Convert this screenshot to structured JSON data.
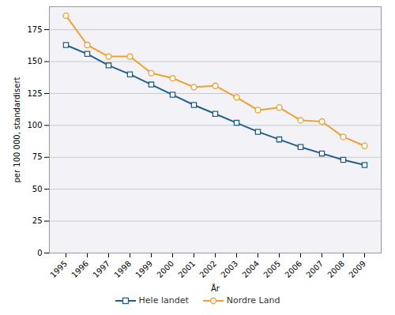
{
  "chart_data": {
    "type": "line",
    "x_label": "År",
    "y_label": "per 100 000, standardisert",
    "categories": [
      "1995",
      "1996",
      "1997",
      "1998",
      "1999",
      "2000",
      "2001",
      "2002",
      "2003",
      "2004",
      "2005",
      "2006",
      "2007",
      "2008",
      "2009"
    ],
    "series": [
      {
        "name": "Hele landet",
        "color": "#1f5f8f",
        "marker": "square",
        "values": [
          163,
          156,
          147,
          140,
          132,
          124,
          116,
          109,
          102,
          95,
          89,
          83,
          78,
          73,
          69
        ]
      },
      {
        "name": "Nordre Land",
        "color": "#f0a030",
        "marker": "circle",
        "values": [
          186,
          163,
          154,
          154,
          141,
          137,
          130,
          131,
          122,
          112,
          114,
          104,
          103,
          91,
          84
        ]
      }
    ],
    "ylim": [
      0,
      193
    ],
    "yticks": [
      0,
      25,
      50,
      75,
      100,
      125,
      150,
      175
    ],
    "grid": true,
    "legend": "bottom"
  }
}
